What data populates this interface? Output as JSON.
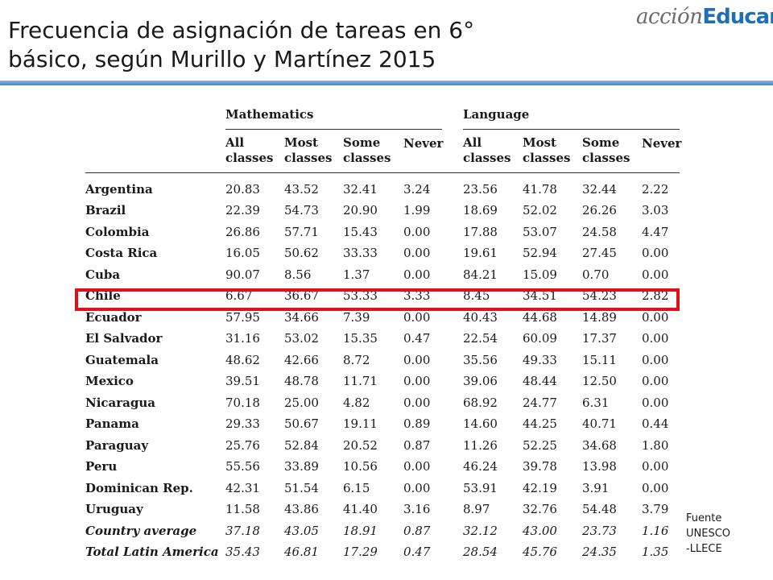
{
  "slide": {
    "title_line1": "Frecuencia de asignación de tareas en 6°",
    "title_line2": "básico, según Murillo y Martínez 2015"
  },
  "logo": {
    "part1": "acción",
    "part2": "Educar"
  },
  "table": {
    "groups": [
      "Mathematics",
      "Language"
    ],
    "subheaders": [
      [
        "All",
        "classes"
      ],
      [
        "Most",
        "classes"
      ],
      [
        "Some",
        "classes"
      ],
      [
        "Never",
        ""
      ],
      [
        "All",
        "classes"
      ],
      [
        "Most",
        "classes"
      ],
      [
        "Some",
        "classes"
      ],
      [
        "Never",
        ""
      ]
    ],
    "rows": [
      {
        "country": "Argentina",
        "values": [
          "20.83",
          "43.52",
          "32.41",
          "3.24",
          "23.56",
          "41.78",
          "32.44",
          "2.22"
        ]
      },
      {
        "country": "Brazil",
        "values": [
          "22.39",
          "54.73",
          "20.90",
          "1.99",
          "18.69",
          "52.02",
          "26.26",
          "3.03"
        ]
      },
      {
        "country": "Colombia",
        "values": [
          "26.86",
          "57.71",
          "15.43",
          "0.00",
          "17.88",
          "53.07",
          "24.58",
          "4.47"
        ]
      },
      {
        "country": "Costa Rica",
        "values": [
          "16.05",
          "50.62",
          "33.33",
          "0.00",
          "19.61",
          "52.94",
          "27.45",
          "0.00"
        ]
      },
      {
        "country": "Cuba",
        "values": [
          "90.07",
          "8.56",
          "1.37",
          "0.00",
          "84.21",
          "15.09",
          "0.70",
          "0.00"
        ]
      },
      {
        "country": "Chile",
        "values": [
          "6.67",
          "36.67",
          "53.33",
          "3.33",
          "8.45",
          "34.51",
          "54.23",
          "2.82"
        ]
      },
      {
        "country": "Ecuador",
        "values": [
          "57.95",
          "34.66",
          "7.39",
          "0.00",
          "40.43",
          "44.68",
          "14.89",
          "0.00"
        ]
      },
      {
        "country": "El Salvador",
        "values": [
          "31.16",
          "53.02",
          "15.35",
          "0.47",
          "22.54",
          "60.09",
          "17.37",
          "0.00"
        ]
      },
      {
        "country": "Guatemala",
        "values": [
          "48.62",
          "42.66",
          "8.72",
          "0.00",
          "35.56",
          "49.33",
          "15.11",
          "0.00"
        ]
      },
      {
        "country": "Mexico",
        "values": [
          "39.51",
          "48.78",
          "11.71",
          "0.00",
          "39.06",
          "48.44",
          "12.50",
          "0.00"
        ]
      },
      {
        "country": "Nicaragua",
        "values": [
          "70.18",
          "25.00",
          "4.82",
          "0.00",
          "68.92",
          "24.77",
          "6.31",
          "0.00"
        ]
      },
      {
        "country": "Panama",
        "values": [
          "29.33",
          "50.67",
          "19.11",
          "0.89",
          "14.60",
          "44.25",
          "40.71",
          "0.44"
        ]
      },
      {
        "country": "Paraguay",
        "values": [
          "25.76",
          "52.84",
          "20.52",
          "0.87",
          "11.26",
          "52.25",
          "34.68",
          "1.80"
        ]
      },
      {
        "country": "Peru",
        "values": [
          "55.56",
          "33.89",
          "10.56",
          "0.00",
          "46.24",
          "39.78",
          "13.98",
          "0.00"
        ]
      },
      {
        "country": "Dominican Rep.",
        "values": [
          "42.31",
          "51.54",
          "6.15",
          "0.00",
          "53.91",
          "42.19",
          "3.91",
          "0.00"
        ]
      },
      {
        "country": "Uruguay",
        "values": [
          "11.58",
          "43.86",
          "41.40",
          "3.16",
          "8.97",
          "32.76",
          "54.48",
          "3.79"
        ]
      },
      {
        "country": "Country average",
        "italic": true,
        "values": [
          "37.18",
          "43.05",
          "18.91",
          "0.87",
          "32.12",
          "43.00",
          "23.73",
          "1.16"
        ]
      },
      {
        "country": "Total Latin America",
        "italic": true,
        "values": [
          "35.43",
          "46.81",
          "17.29",
          "0.47",
          "28.54",
          "45.76",
          "24.35",
          "1.35"
        ]
      }
    ]
  },
  "highlight": {
    "row_label": "Chile",
    "color": "#e3101b"
  },
  "source_note": {
    "line1": "Fuente",
    "line2": "UNESCO",
    "line3": "-LLECE"
  },
  "colors": {
    "accent_rule": "#4f81bd",
    "logo_blue": "#1e6fb5",
    "logo_gray": "#6b6b6b"
  }
}
